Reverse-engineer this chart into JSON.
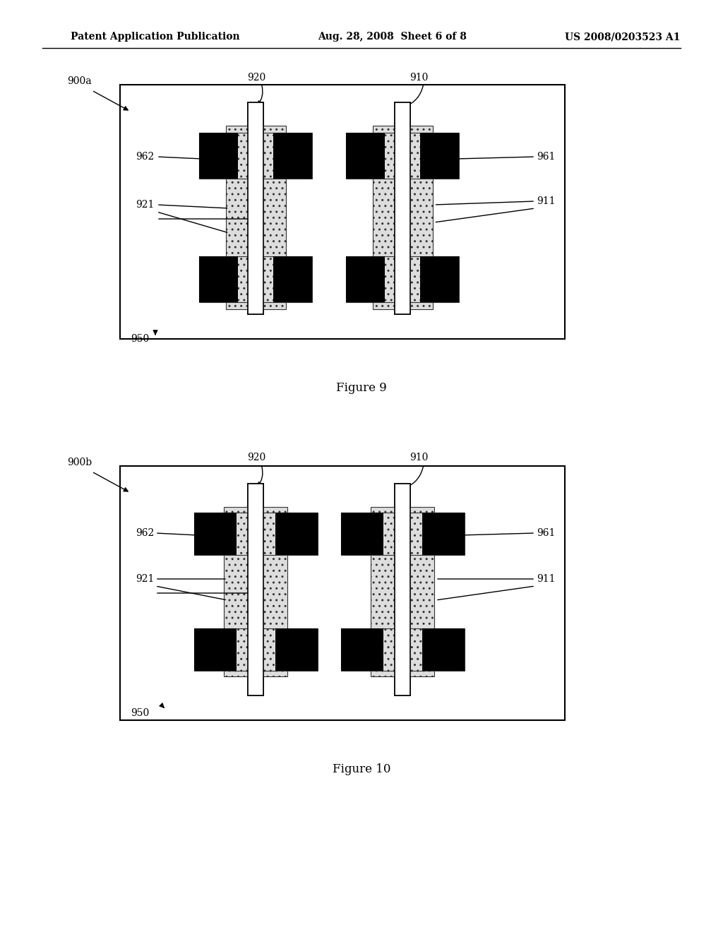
{
  "bg_color": "#ffffff",
  "header_left": "Patent Application Publication",
  "header_mid": "Aug. 28, 2008  Sheet 6 of 8",
  "header_right": "US 2008/0203523 A1",
  "fig9_label": "Figure 9",
  "fig10_label": "Figure 10",
  "fig9_tag": "900a",
  "fig10_tag": "900b"
}
